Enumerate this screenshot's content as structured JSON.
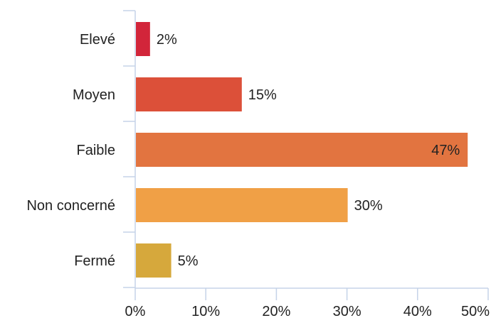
{
  "chart_data": {
    "type": "bar",
    "orientation": "horizontal",
    "categories": [
      "Elevé",
      "Moyen",
      "Faible",
      "Non concerné",
      "Fermé"
    ],
    "values": [
      2,
      15,
      47,
      30,
      5
    ],
    "value_labels": [
      "2%",
      "15%",
      "47%",
      "30%",
      "5%"
    ],
    "colors": [
      "#d2253a",
      "#dc5039",
      "#e27440",
      "#f0a046",
      "#d6a83c"
    ],
    "x_ticks": [
      0,
      10,
      20,
      30,
      40,
      50
    ],
    "x_tick_labels": [
      "0%",
      "10%",
      "20%",
      "30%",
      "40%",
      "50%"
    ],
    "xlim": [
      0,
      50
    ],
    "grid": false,
    "legend": "none",
    "axis_color": "#c5d3e8"
  }
}
